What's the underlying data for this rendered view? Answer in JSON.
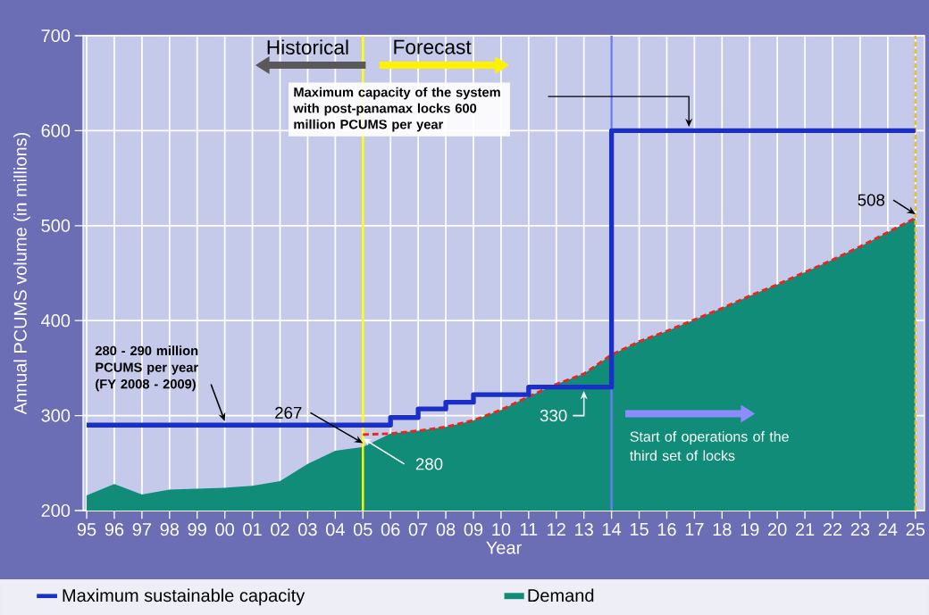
{
  "chart_data": {
    "type": "area",
    "xlabel": "Year",
    "ylabel": "Annual PCUMS volume (in millions)",
    "categories": [
      "95",
      "96",
      "97",
      "98",
      "99",
      "00",
      "01",
      "02",
      "03",
      "04",
      "05",
      "06",
      "07",
      "08",
      "09",
      "10",
      "11",
      "12",
      "13",
      "14",
      "15",
      "16",
      "17",
      "18",
      "19",
      "20",
      "21",
      "22",
      "23",
      "24",
      "25"
    ],
    "series": [
      {
        "name": "Maximum sustainable capacity",
        "type": "step",
        "color": "#1a2fc8",
        "values": [
          290,
          290,
          290,
          290,
          290,
          290,
          290,
          290,
          290,
          290,
          290,
          298,
          307,
          314,
          322,
          322,
          330,
          330,
          330,
          600,
          600,
          600,
          600,
          600,
          600,
          600,
          600,
          600,
          600,
          600,
          600
        ]
      },
      {
        "name": "Demand",
        "color": "#108c78",
        "values": [
          216,
          228,
          217,
          222,
          223,
          224,
          226,
          231,
          249,
          263,
          267,
          281,
          284,
          288,
          295,
          306,
          320,
          333,
          344,
          364,
          378,
          389,
          401,
          413,
          426,
          438,
          451,
          464,
          478,
          493,
          508
        ]
      },
      {
        "type": "line",
        "color": "#e8281e",
        "line_style": "dashed",
        "values": [
          null,
          null,
          null,
          null,
          null,
          null,
          null,
          null,
          null,
          null,
          280,
          281,
          284,
          288,
          295,
          306,
          320,
          333,
          344,
          364,
          378,
          389,
          401,
          413,
          426,
          438,
          451,
          464,
          478,
          493,
          508
        ]
      }
    ],
    "ylim": [
      200,
      700
    ],
    "yticks": [
      200,
      300,
      400,
      500,
      600,
      700
    ],
    "grid": true,
    "legend": "bottom",
    "ref_lines": [
      {
        "axis": "x",
        "value": "05",
        "color": "#ffff00"
      },
      {
        "axis": "x",
        "value": "14",
        "color": "#6a7cf2"
      },
      {
        "axis": "x",
        "value": "25",
        "color": "#f5b820",
        "line_style": "dashed"
      }
    ],
    "annotations": [
      "Historical",
      "Forecast",
      "Maximum capacity of the system with post-panamax locks 600 million PCUMS per year",
      "280 - 290 million PCUMS per year (FY 2008 - 2009)",
      {
        "text": "267",
        "x": "05",
        "y": 267
      },
      {
        "text": "280",
        "x": "05",
        "y": 280
      },
      {
        "text": "330",
        "x": "13",
        "y": 330
      },
      {
        "text": "508",
        "x": "25",
        "y": 508
      },
      "Start of operations of the third set of locks"
    ]
  }
}
